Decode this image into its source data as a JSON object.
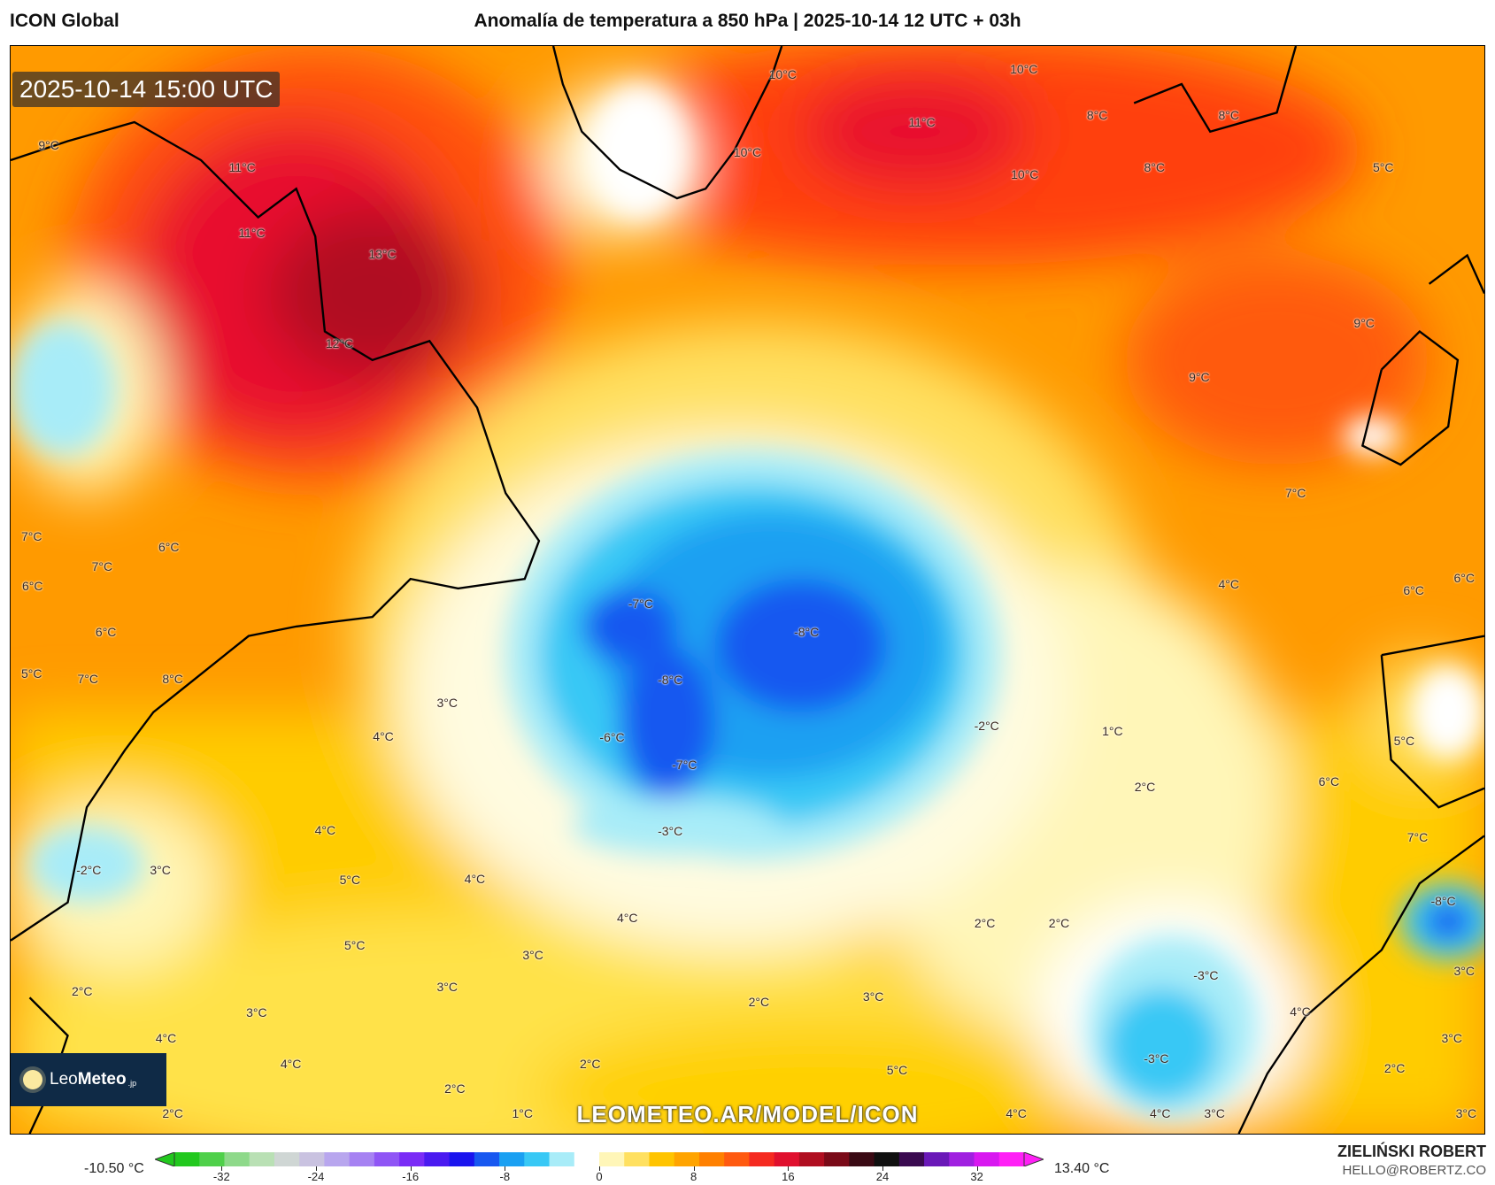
{
  "header": {
    "model": "ICON Global",
    "title": "Anomalía de temperatura a 850 hPa | 2025-10-14 12 UTC + 03h"
  },
  "map": {
    "valid_time": "2025-10-14 15:00 UTC",
    "watermark": "LEOMETEO.AR/MODEL/ICON",
    "labels": [
      "10°C",
      "10°C",
      "11°C",
      "8°C",
      "8°C",
      "10°C",
      "10°C",
      "8°C",
      "5°C",
      "9°C",
      "11°C",
      "11°C",
      "13°C",
      "12°C",
      "9°C",
      "9°C",
      "7°C",
      "7°C",
      "6°C",
      "7°C",
      "6°C",
      "6°C",
      "5°C",
      "7°C",
      "8°C",
      "3°C",
      "4°C",
      "-7°C",
      "-8°C",
      "-8°C",
      "-6°C",
      "-7°C",
      "-2°C",
      "1°C",
      "2°C",
      "-3°C",
      "4°C",
      "6°C",
      "6°C",
      "5°C",
      "6°C",
      "7°C",
      "-8°C",
      "-2°C",
      "3°C",
      "5°C",
      "4°C",
      "4°C",
      "5°C",
      "4°C",
      "2°C",
      "2°C",
      "3°C",
      "3°C",
      "3°C",
      "2°C",
      "-3°C",
      "-3°C",
      "3°C",
      "4°C",
      "4°C",
      "3°C",
      "2°C",
      "3°C",
      "2°C",
      "4°C",
      "2°C",
      "5°C",
      "1°C",
      "2°C",
      "4°C",
      "4°C",
      "3°C",
      "3°C",
      "2°C"
    ]
  },
  "logo": {
    "brand_light": "Leo",
    "brand_bold": "Meteo",
    "suffix": ".jp"
  },
  "colorbar": {
    "min_label": "-10.50 °C",
    "max_label": "13.40 °C",
    "ticks": [
      "-32",
      "-24",
      "-16",
      "-8",
      "0",
      "8",
      "16",
      "24",
      "32"
    ],
    "range": [
      -36,
      36
    ],
    "colors": [
      "#22c81e",
      "#4fd04a",
      "#8ed98a",
      "#b9e0b4",
      "#cfd6d4",
      "#c9c2e0",
      "#b8a6ee",
      "#a682f2",
      "#8f55f5",
      "#7a2cf6",
      "#4a1af0",
      "#1a14ee",
      "#1858f0",
      "#1aa0f2",
      "#38c8f5",
      "#a8ecf8",
      "#ffffff",
      "#fff6b8",
      "#ffe060",
      "#ffc400",
      "#ffa400",
      "#ff8000",
      "#ff5a10",
      "#f52a20",
      "#e0102e",
      "#b00e20",
      "#7a0a18",
      "#3a0a14",
      "#101010",
      "#3a0a50",
      "#6a18b8",
      "#a020e0",
      "#d818f0",
      "#ff20f6"
    ]
  },
  "credits": {
    "author": "ZIELIŃSKI ROBERT",
    "email": "HELLO@ROBERTZ.CO"
  }
}
